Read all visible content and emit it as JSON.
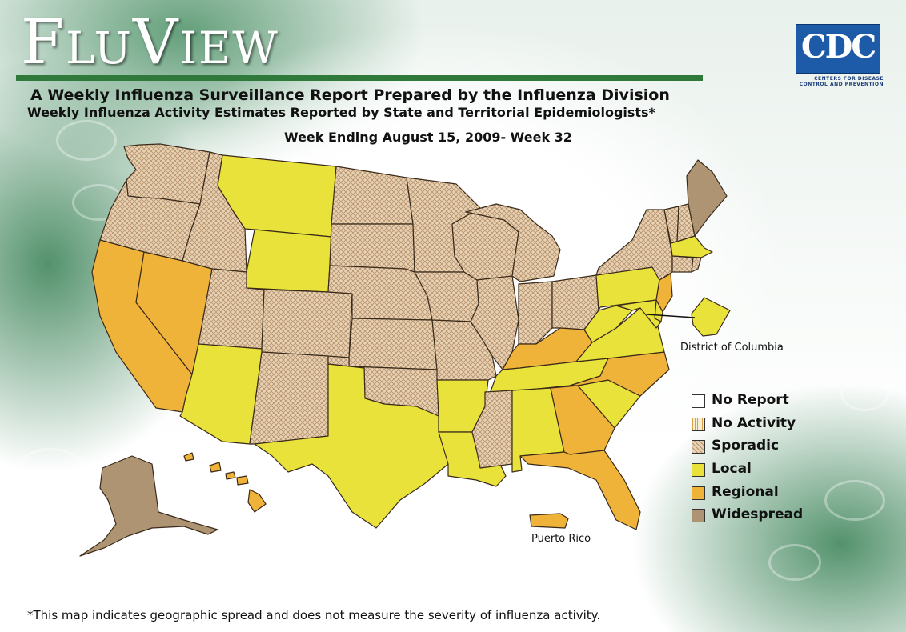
{
  "header": {
    "logo_text": "FluView",
    "subtitle": "A Weekly Influenza Surveillance Report Prepared by the Influenza Division",
    "subtitle2": "Weekly Influenza Activity Estimates Reported by State and Territorial Epidemiologists*",
    "week": "Week Ending August 15, 2009- Week 32"
  },
  "cdc_logo": {
    "text": "CDC",
    "line1": "CENTERS FOR DISEASE",
    "line2": "CONTROL AND PREVENTION",
    "color": "#1d5aa7"
  },
  "colors": {
    "no_report": "#ffffff",
    "no_activity": "#f7efcf",
    "sporadic": "#e6d2b4",
    "local": "#e8e23a",
    "regional": "#f0b33a",
    "widespread": "#ae9473"
  },
  "legend": [
    {
      "label": "No Report",
      "level": "no_report"
    },
    {
      "label": "No Activity",
      "level": "no_activity"
    },
    {
      "label": "Sporadic",
      "level": "sporadic"
    },
    {
      "label": "Local",
      "level": "local"
    },
    {
      "label": "Regional",
      "level": "regional"
    },
    {
      "label": "Widespread",
      "level": "widespread"
    }
  ],
  "regions": [
    {
      "name": "Washington",
      "level": "sporadic"
    },
    {
      "name": "Oregon",
      "level": "sporadic"
    },
    {
      "name": "California",
      "level": "regional"
    },
    {
      "name": "Nevada",
      "level": "regional"
    },
    {
      "name": "Idaho",
      "level": "sporadic"
    },
    {
      "name": "Montana",
      "level": "local"
    },
    {
      "name": "Wyoming",
      "level": "local"
    },
    {
      "name": "Utah",
      "level": "sporadic"
    },
    {
      "name": "Colorado",
      "level": "sporadic"
    },
    {
      "name": "Arizona",
      "level": "local"
    },
    {
      "name": "New Mexico",
      "level": "sporadic"
    },
    {
      "name": "North Dakota",
      "level": "sporadic"
    },
    {
      "name": "South Dakota",
      "level": "sporadic"
    },
    {
      "name": "Nebraska",
      "level": "sporadic"
    },
    {
      "name": "Kansas",
      "level": "sporadic"
    },
    {
      "name": "Oklahoma",
      "level": "sporadic"
    },
    {
      "name": "Texas",
      "level": "local"
    },
    {
      "name": "Minnesota",
      "level": "sporadic"
    },
    {
      "name": "Iowa",
      "level": "sporadic"
    },
    {
      "name": "Missouri",
      "level": "sporadic"
    },
    {
      "name": "Arkansas",
      "level": "local"
    },
    {
      "name": "Louisiana",
      "level": "local"
    },
    {
      "name": "Wisconsin",
      "level": "sporadic"
    },
    {
      "name": "Illinois",
      "level": "sporadic"
    },
    {
      "name": "Michigan",
      "level": "sporadic"
    },
    {
      "name": "Indiana",
      "level": "sporadic"
    },
    {
      "name": "Ohio",
      "level": "sporadic"
    },
    {
      "name": "Kentucky",
      "level": "regional"
    },
    {
      "name": "Tennessee",
      "level": "local"
    },
    {
      "name": "Mississippi",
      "level": "sporadic"
    },
    {
      "name": "Alabama",
      "level": "local"
    },
    {
      "name": "Georgia",
      "level": "regional"
    },
    {
      "name": "Florida",
      "level": "regional"
    },
    {
      "name": "South Carolina",
      "level": "local"
    },
    {
      "name": "North Carolina",
      "level": "regional"
    },
    {
      "name": "Virginia",
      "level": "local"
    },
    {
      "name": "West Virginia",
      "level": "local"
    },
    {
      "name": "Pennsylvania",
      "level": "local"
    },
    {
      "name": "New York",
      "level": "sporadic"
    },
    {
      "name": "Vermont",
      "level": "sporadic"
    },
    {
      "name": "New Hampshire",
      "level": "sporadic"
    },
    {
      "name": "Maine",
      "level": "widespread"
    },
    {
      "name": "Massachusetts",
      "level": "local"
    },
    {
      "name": "Connecticut",
      "level": "sporadic"
    },
    {
      "name": "Rhode Island",
      "level": "sporadic"
    },
    {
      "name": "New Jersey",
      "level": "regional"
    },
    {
      "name": "Delaware",
      "level": "local"
    },
    {
      "name": "Maryland",
      "level": "local"
    },
    {
      "name": "Alaska",
      "level": "widespread"
    },
    {
      "name": "Hawaii",
      "level": "regional"
    },
    {
      "name": "Puerto Rico",
      "level": "regional"
    },
    {
      "name": "District of Columbia",
      "level": "local"
    }
  ],
  "labels": {
    "dc": "District of Columbia",
    "pr": "Puerto Rico"
  },
  "footnote": "*This map indicates geographic spread and does not measure the severity of influenza activity."
}
